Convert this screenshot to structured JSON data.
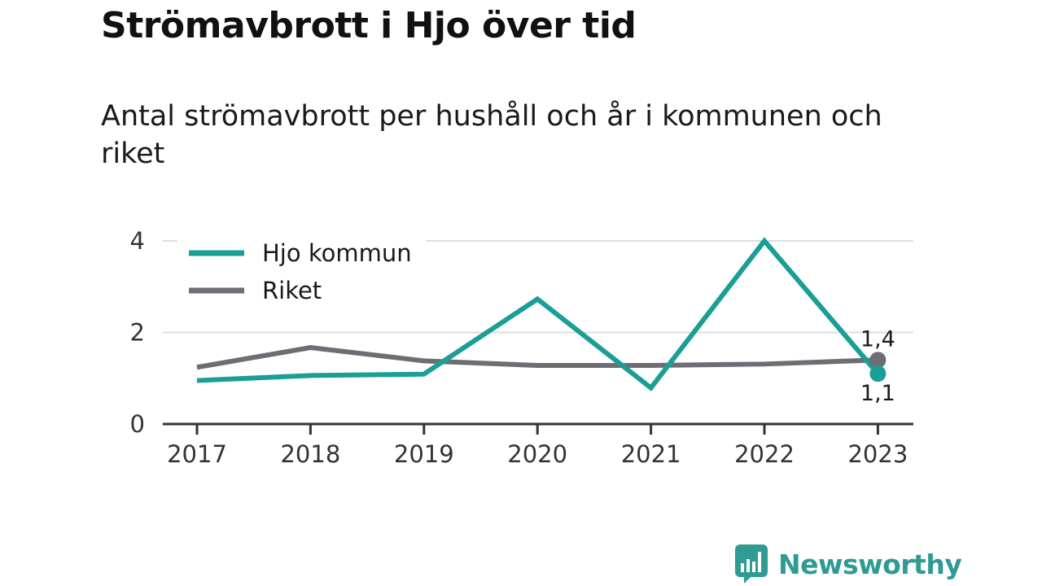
{
  "title": "Strömavbrott i Hjo över tid",
  "subtitle": "Antal strömavbrott per hushåll och år i kommunen och riket",
  "brand": {
    "name": "Newsworthy",
    "color": "#2f9b93"
  },
  "chart_data": {
    "type": "line",
    "x": [
      "2017",
      "2018",
      "2019",
      "2020",
      "2021",
      "2022",
      "2023"
    ],
    "ylim": [
      0,
      4
    ],
    "yticks": [
      "0",
      "2",
      "4"
    ],
    "grid": true,
    "legend_position": "top-left",
    "series": [
      {
        "name": "Hjo kommun",
        "color": "#1a9e96",
        "values": [
          0.95,
          1.06,
          1.09,
          2.73,
          0.79,
          4.0,
          1.1
        ],
        "end_label": "1,1"
      },
      {
        "name": "Riket",
        "color": "#6e6d74",
        "values": [
          1.24,
          1.67,
          1.38,
          1.28,
          1.28,
          1.31,
          1.4
        ],
        "end_label": "1,4"
      }
    ]
  }
}
